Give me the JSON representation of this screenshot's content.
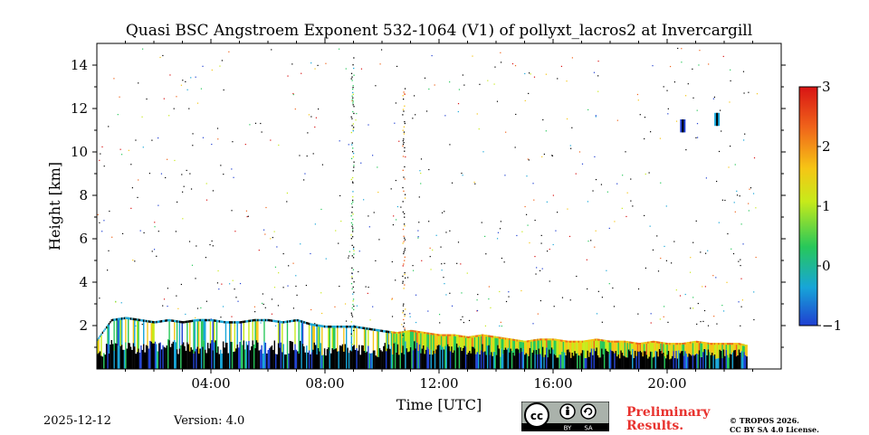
{
  "chart_data": {
    "type": "heatmap",
    "title": "Quasi BSC Angstroem Exponent 532-1064 (V1) of pollyxt_lacros2 at Invercargill",
    "xlabel": "Time [UTC]",
    "ylabel": "Height [km]",
    "x_unit": "hours UTC",
    "xlim": [
      0,
      24
    ],
    "ylim": [
      0,
      15
    ],
    "x_ticks": [
      4,
      8,
      12,
      16,
      20
    ],
    "x_tick_labels": [
      "04:00",
      "08:00",
      "12:00",
      "16:00",
      "20:00"
    ],
    "y_ticks": [
      2,
      4,
      6,
      8,
      10,
      12,
      14
    ],
    "y_tick_labels": [
      "2",
      "4",
      "6",
      "8",
      "10",
      "12",
      "14"
    ],
    "colorbar": {
      "range": [
        -1,
        3
      ],
      "ticks": [
        -1,
        0,
        1,
        2,
        3
      ],
      "tick_labels": [
        "−1",
        "0",
        "1",
        "2",
        "3"
      ],
      "colors": [
        "#1f3fd1",
        "#17a5d8",
        "#27c85a",
        "#c7ea1a",
        "#f6c515",
        "#f0641a",
        "#d81414"
      ]
    },
    "layer_top_km": [
      {
        "t": 0.0,
        "h": 1.4
      },
      {
        "t": 0.5,
        "h": 2.3
      },
      {
        "t": 1.0,
        "h": 2.4
      },
      {
        "t": 1.5,
        "h": 2.3
      },
      {
        "t": 2.0,
        "h": 2.2
      },
      {
        "t": 2.5,
        "h": 2.3
      },
      {
        "t": 3.0,
        "h": 2.2
      },
      {
        "t": 3.5,
        "h": 2.3
      },
      {
        "t": 4.0,
        "h": 2.3
      },
      {
        "t": 4.5,
        "h": 2.2
      },
      {
        "t": 5.0,
        "h": 2.2
      },
      {
        "t": 5.5,
        "h": 2.3
      },
      {
        "t": 6.0,
        "h": 2.3
      },
      {
        "t": 6.5,
        "h": 2.2
      },
      {
        "t": 7.0,
        "h": 2.3
      },
      {
        "t": 7.5,
        "h": 2.1
      },
      {
        "t": 8.0,
        "h": 2.0
      },
      {
        "t": 8.5,
        "h": 2.0
      },
      {
        "t": 9.0,
        "h": 2.0
      },
      {
        "t": 9.5,
        "h": 1.9
      },
      {
        "t": 10.0,
        "h": 1.8
      },
      {
        "t": 10.5,
        "h": 1.7
      },
      {
        "t": 11.0,
        "h": 1.8
      },
      {
        "t": 11.5,
        "h": 1.7
      },
      {
        "t": 12.0,
        "h": 1.6
      },
      {
        "t": 12.5,
        "h": 1.6
      },
      {
        "t": 13.0,
        "h": 1.5
      },
      {
        "t": 13.5,
        "h": 1.6
      },
      {
        "t": 14.0,
        "h": 1.5
      },
      {
        "t": 14.5,
        "h": 1.4
      },
      {
        "t": 15.0,
        "h": 1.3
      },
      {
        "t": 15.5,
        "h": 1.4
      },
      {
        "t": 16.0,
        "h": 1.4
      },
      {
        "t": 16.5,
        "h": 1.3
      },
      {
        "t": 17.0,
        "h": 1.3
      },
      {
        "t": 17.5,
        "h": 1.4
      },
      {
        "t": 18.0,
        "h": 1.3
      },
      {
        "t": 18.5,
        "h": 1.3
      },
      {
        "t": 19.0,
        "h": 1.2
      },
      {
        "t": 19.5,
        "h": 1.3
      },
      {
        "t": 20.0,
        "h": 1.2
      },
      {
        "t": 20.5,
        "h": 1.2
      },
      {
        "t": 21.0,
        "h": 1.3
      },
      {
        "t": 21.5,
        "h": 1.2
      },
      {
        "t": 22.0,
        "h": 1.2
      },
      {
        "t": 22.5,
        "h": 1.2
      },
      {
        "t": 22.8,
        "h": 1.1
      }
    ],
    "features": [
      {
        "name": "cirrus-patch-1",
        "t": 20.55,
        "h_min": 10.9,
        "h_max": 11.5,
        "value": -0.6
      },
      {
        "name": "cirrus-patch-2",
        "t": 21.75,
        "h_min": 11.2,
        "h_max": 11.8,
        "value": -0.3
      },
      {
        "name": "column-0900",
        "t": 8.95,
        "h_min": 1.0,
        "h_max": 14.5,
        "value": 0.4
      },
      {
        "name": "column-1045",
        "t": 10.75,
        "h_min": 1.5,
        "h_max": 13.0,
        "value": 2.0
      }
    ]
  },
  "footer": {
    "date": "2025-12-12",
    "version": "Version: 4.0",
    "preliminary_line1": "Preliminary",
    "preliminary_line2": "Results.",
    "copyright_line1": "© TROPOS 2026.",
    "copyright_line2": "CC BY SA 4.0 License.",
    "license_badge": {
      "by": "BY",
      "sa": "SA"
    }
  }
}
